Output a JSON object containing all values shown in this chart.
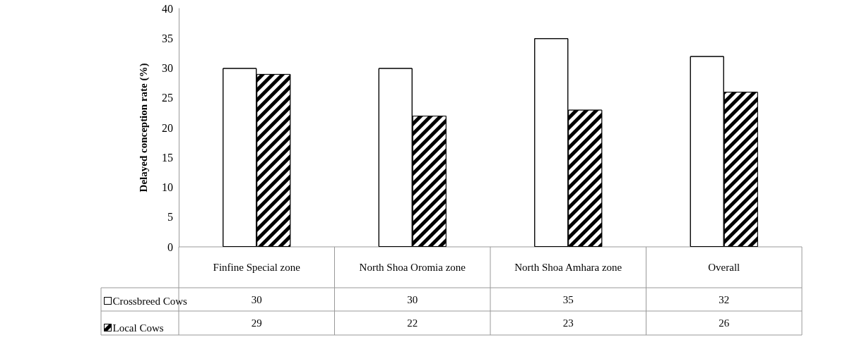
{
  "chart_data": {
    "type": "bar",
    "ylabel": "Delayed conception rate (%)",
    "categories": [
      "Finfine Special zone",
      "North Shoa Oromia zone",
      "North Shoa Amhara zone",
      "Overall"
    ],
    "series": [
      {
        "name": "Crossbreed Cows",
        "color": "#ffffff",
        "values": [
          30,
          30,
          35,
          32
        ]
      },
      {
        "name": "Local Cows",
        "color": "#000000",
        "values": [
          29,
          22,
          23,
          26
        ]
      }
    ],
    "ylim": [
      0,
      40
    ],
    "yticks": [
      0,
      5,
      10,
      15,
      20,
      25,
      30,
      35,
      40
    ],
    "grid": false,
    "legend": "bottom",
    "data_labels": true
  }
}
